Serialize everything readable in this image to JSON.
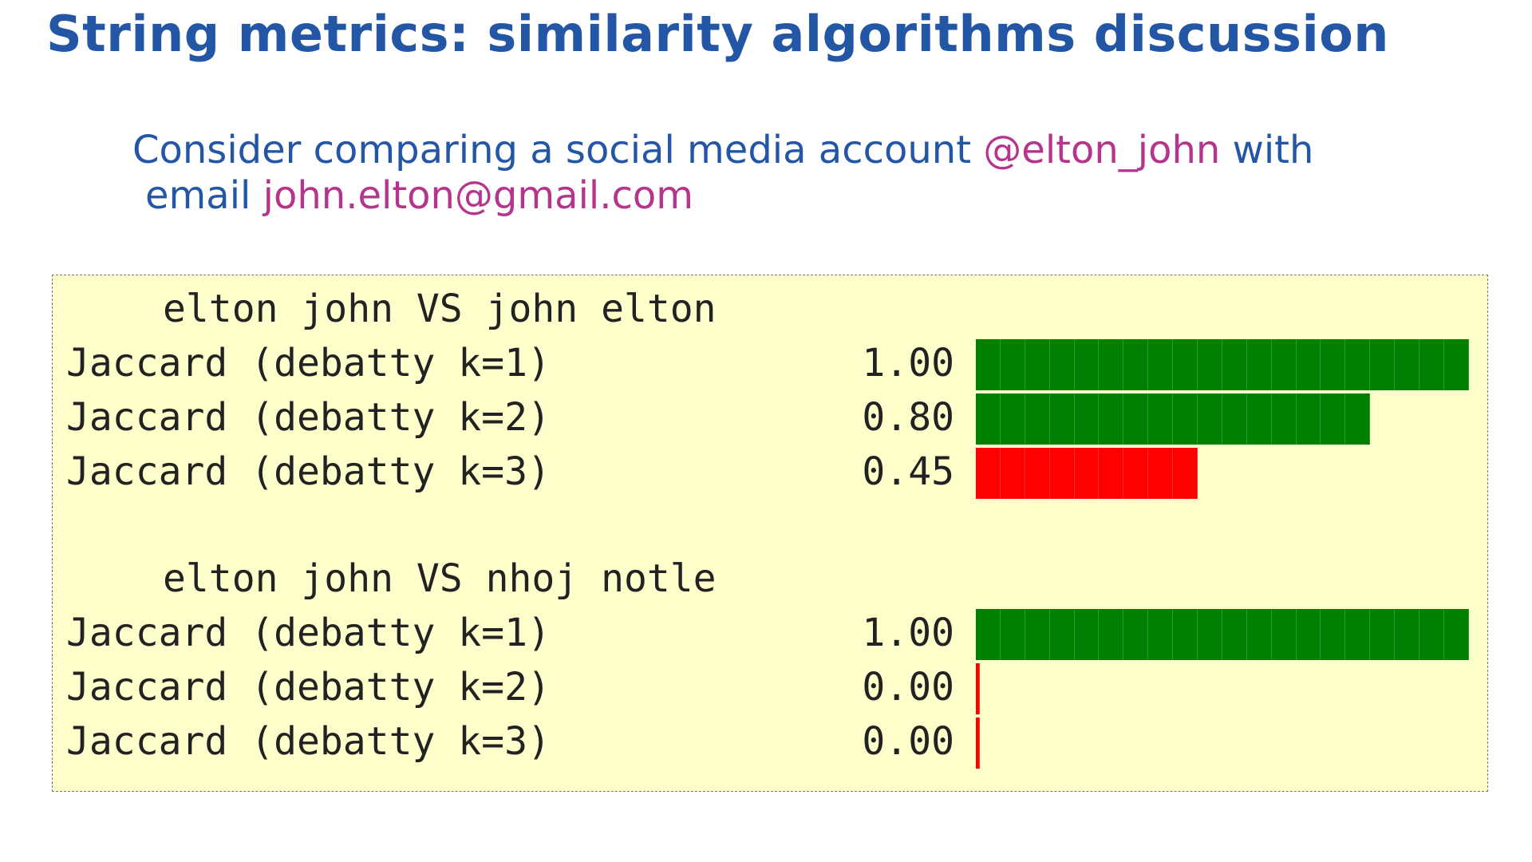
{
  "slide": {
    "title": "String metrics: similarity algorithms discussion",
    "intro": {
      "part1": "Consider comparing a social media account ",
      "account": "@elton_john",
      "part2": " with",
      "part3": "email ",
      "email": "john.elton@gmail.com"
    }
  },
  "colors": {
    "title": "#2456a6",
    "highlight": "#b5358c",
    "panel_bg": "#ffffcc",
    "bar_good": "#008000",
    "bar_bad": "#ff0000"
  },
  "comparisons": [
    {
      "heading": "elton john VS john elton",
      "rows": [
        {
          "label": "Jaccard (debatty k=1)",
          "score_text": "1.00",
          "value": 1.0,
          "color": "#008000"
        },
        {
          "label": "Jaccard (debatty k=2)",
          "score_text": "0.80",
          "value": 0.8,
          "color": "#008000"
        },
        {
          "label": "Jaccard (debatty k=3)",
          "score_text": "0.45",
          "value": 0.45,
          "color": "#ff0000"
        }
      ]
    },
    {
      "heading": "elton john VS nhoj notle",
      "rows": [
        {
          "label": "Jaccard (debatty k=1)",
          "score_text": "1.00",
          "value": 1.0,
          "color": "#008000"
        },
        {
          "label": "Jaccard (debatty k=2)",
          "score_text": "0.00",
          "value": 0.0,
          "color": "#ff0000"
        },
        {
          "label": "Jaccard (debatty k=3)",
          "score_text": "0.00",
          "value": 0.0,
          "color": "#ff0000"
        }
      ]
    }
  ]
}
